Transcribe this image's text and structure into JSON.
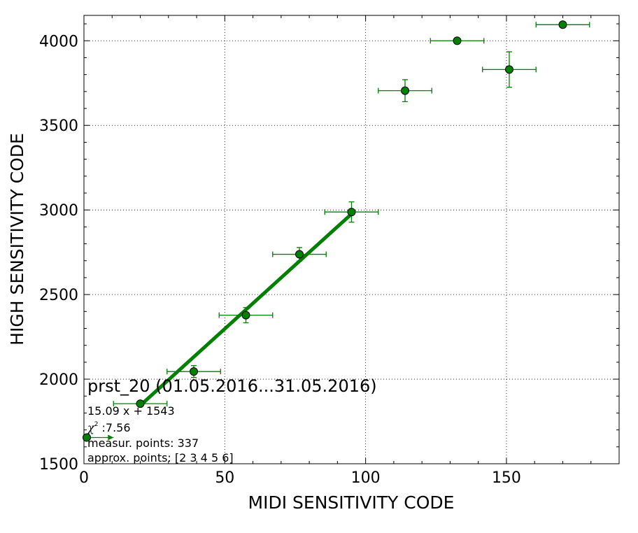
{
  "chart_data": {
    "type": "scatter",
    "xlabel": "MIDI SENSITIVITY CODE",
    "ylabel": "HIGH SENSITIVITY CODE",
    "xlim": [
      0,
      190
    ],
    "ylim": [
      1500,
      4150
    ],
    "xticks": [
      0,
      50,
      100,
      150
    ],
    "yticks": [
      1500,
      2000,
      2500,
      3000,
      3500,
      4000
    ],
    "grid": true,
    "colors": {
      "series": "#008000",
      "marker_edge": "#000000"
    },
    "points": [
      {
        "x": 1,
        "y": 1655,
        "xerr_lo": 1,
        "xerr_hi": 9.5,
        "yerr": 0
      },
      {
        "x": 20,
        "y": 1855,
        "xerr_lo": 9.5,
        "xerr_hi": 9.5,
        "yerr": 0
      },
      {
        "x": 39,
        "y": 2045,
        "xerr_lo": 9.5,
        "xerr_hi": 9.5,
        "yerr": 35
      },
      {
        "x": 57.5,
        "y": 2378,
        "xerr_lo": 9.5,
        "xerr_hi": 9.5,
        "yerr": 45
      },
      {
        "x": 76.5,
        "y": 2738,
        "xerr_lo": 9.5,
        "xerr_hi": 9.5,
        "yerr": 40
      },
      {
        "x": 95,
        "y": 2988,
        "xerr_lo": 9.5,
        "xerr_hi": 9.5,
        "yerr": 60
      },
      {
        "x": 114,
        "y": 3705,
        "xerr_lo": 9.5,
        "xerr_hi": 9.5,
        "yerr": 65
      },
      {
        "x": 132.5,
        "y": 4000,
        "xerr_lo": 9.5,
        "xerr_hi": 9.5,
        "yerr": 0
      },
      {
        "x": 151,
        "y": 3830,
        "xerr_lo": 9.5,
        "xerr_hi": 9.5,
        "yerr": 105
      },
      {
        "x": 170,
        "y": 4095,
        "xerr_lo": 9.5,
        "xerr_hi": 9.5,
        "yerr": 0
      }
    ],
    "fit": {
      "slope": 15.09,
      "intercept": 1543,
      "x_range": [
        20,
        95
      ]
    },
    "annotations": {
      "title": "prst_20 (01.05.2016...31.05.2016)",
      "equation": "15.09 x + 1543",
      "chi2_symbol": "χ",
      "chi2_exp": "2",
      "chi2_value": " :7.56",
      "measur_points": "measur. points: 337",
      "approx_points": "approx. points: [2 3 4 5 6]"
    }
  }
}
